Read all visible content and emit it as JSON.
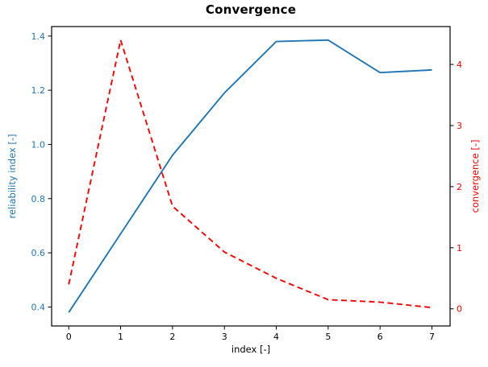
{
  "figure": {
    "background": "#ffffff",
    "spine_color": "#000000"
  },
  "chart_data": {
    "type": "line",
    "title": "Convergence",
    "xlabel": "index [-]",
    "ylabel_left": "reliability index [-]",
    "ylabel_right": "convergence [-]",
    "grid": false,
    "legend": "none",
    "x": [
      0,
      1,
      2,
      3,
      4,
      5,
      6,
      7
    ],
    "series": [
      {
        "name": "reliability index",
        "axis": "left",
        "color": "#1f77b4",
        "style": "solid",
        "values": [
          0.38,
          0.67,
          0.96,
          1.19,
          1.38,
          1.385,
          1.265,
          1.275
        ]
      },
      {
        "name": "convergence",
        "axis": "right",
        "color": "#ff0000",
        "style": "dashed",
        "values": [
          0.4,
          4.4,
          1.68,
          0.93,
          0.5,
          0.15,
          0.11,
          0.02
        ]
      }
    ],
    "xlim": [
      -0.33,
      7.35
    ],
    "ylim_left": [
      0.33,
      1.435
    ],
    "ylim_right": [
      -0.28,
      4.62
    ],
    "xticks": {
      "values": [
        0,
        1,
        2,
        3,
        4,
        5,
        6,
        7
      ],
      "labels": [
        "0",
        "1",
        "2",
        "3",
        "4",
        "5",
        "6",
        "7"
      ]
    },
    "yticks_left": {
      "values": [
        0.4,
        0.6,
        0.8,
        1.0,
        1.2,
        1.4
      ],
      "labels": [
        "0.4",
        "0.6",
        "0.8",
        "1.0",
        "1.2",
        "1.4"
      ]
    },
    "yticks_right": {
      "values": [
        0,
        1,
        2,
        3,
        4
      ],
      "labels": [
        "0",
        "1",
        "2",
        "3",
        "4"
      ]
    },
    "axis_colors": {
      "left": "#1f77b4",
      "right": "#ff0000",
      "bottom": "#000000"
    }
  }
}
